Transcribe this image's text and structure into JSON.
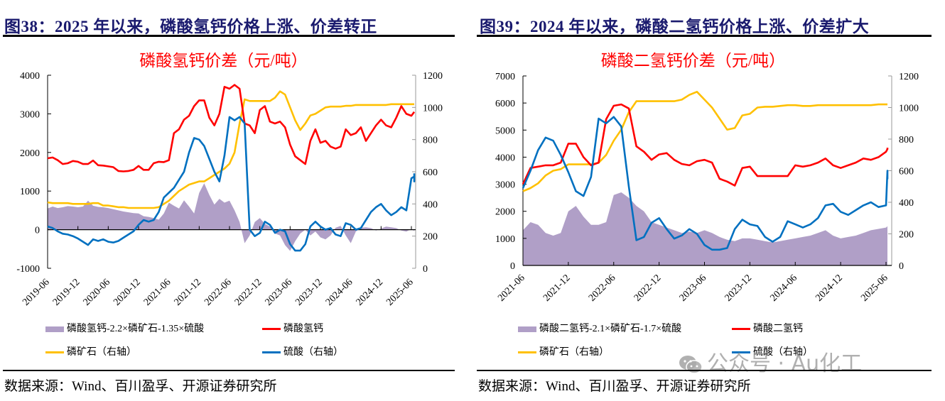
{
  "colors": {
    "spread_area": "#b09fc7",
    "product_line": "#ff0000",
    "phosphate_rock_line": "#ffc000",
    "sulfuric_acid_line": "#0070c0",
    "figure_title": "#1a1a6e",
    "chart_title": "#ff0000"
  },
  "left": {
    "figure_title": "图38：2025 年以来，磷酸氢钙价格上涨、价差转正",
    "source": "数据来源：Wind、百川盈孚、开源证券研究所",
    "legend": {
      "spread": "磷酸氢钙-2.2×磷矿石-1.35×硫酸",
      "product": "磷酸氢钙",
      "rock": "磷矿石（右轴）",
      "acid": "硫酸（右轴）"
    }
  },
  "right": {
    "figure_title": "图39：2024 年以来，磷酸二氢钙价格上涨、价差扩大",
    "source": "数据来源：Wind、百川盈孚、开源证券研究所",
    "legend": {
      "spread": "磷酸二氢钙-2.1×磷矿石-1.7×硫酸",
      "product": "磷酸二氢钙",
      "rock": "磷矿石（右轴）",
      "acid": "硫酸（右轴）"
    },
    "watermark": "公众号 · Au化工"
  },
  "chart_data": [
    {
      "type": "line",
      "title": "磷酸氢钙价差（元/吨）",
      "xlabel": "",
      "ylabel": "",
      "ylim": [
        -1000,
        4000
      ],
      "y_ticks": [
        -1000,
        0,
        1000,
        2000,
        3000,
        4000
      ],
      "y2lim": [
        0,
        1200
      ],
      "y2_ticks": [
        0,
        200,
        400,
        600,
        800,
        1000,
        1200
      ],
      "x_start": "2019-06",
      "x_step": "month",
      "x_tick_labels": [
        "2019-06",
        "2019-12",
        "2020-06",
        "2020-12",
        "2021-06",
        "2021-12",
        "2022-06",
        "2022-12",
        "2023-06",
        "2023-12",
        "2024-06",
        "2024-12",
        "2025-06"
      ],
      "grid": false,
      "legend_position": "bottom",
      "series": [
        {
          "name": "磷酸氢钙-2.2×磷矿石-1.35×硫酸",
          "kind": "area",
          "axis": "left",
          "values": [
            550,
            600,
            560,
            580,
            610,
            600,
            580,
            600,
            750,
            620,
            590,
            580,
            560,
            530,
            500,
            470,
            450,
            430,
            420,
            350,
            330,
            300,
            260,
            420,
            700,
            620,
            550,
            760,
            600,
            420,
            950,
            1200,
            900,
            650,
            800,
            700,
            750,
            500,
            200,
            -350,
            -150,
            200,
            300,
            150,
            80,
            -100,
            -150,
            -400,
            -550,
            -300,
            -100,
            0,
            -150,
            -50,
            -200,
            -250,
            -150,
            50,
            100,
            -150,
            -350,
            -50,
            50,
            60,
            40,
            -20,
            30,
            80,
            60,
            40,
            -20,
            -50,
            20,
            -30
          ]
        },
        {
          "name": "磷酸氢钙",
          "kind": "line",
          "axis": "left",
          "values": [
            1850,
            1870,
            1800,
            1700,
            1720,
            1780,
            1760,
            1700,
            1700,
            1790,
            1670,
            1660,
            1640,
            1620,
            1520,
            1510,
            1520,
            1550,
            1650,
            1550,
            1550,
            1720,
            1760,
            1750,
            1800,
            2500,
            2600,
            2850,
            2950,
            3200,
            3350,
            3350,
            2900,
            2700,
            3000,
            3700,
            3650,
            3750,
            3650,
            2750,
            2700,
            2500,
            3100,
            3200,
            2800,
            2750,
            2800,
            2650,
            2200,
            1900,
            1800,
            1700,
            2300,
            2600,
            2250,
            2300,
            2150,
            2100,
            2150,
            2600,
            2450,
            2500,
            2650,
            2300,
            2500,
            2700,
            2850,
            2700,
            2650,
            2900,
            3200,
            3000,
            2950,
            3050
          ]
        },
        {
          "name": "磷矿石（右轴）",
          "kind": "line",
          "axis": "right",
          "values": [
            410,
            405,
            405,
            405,
            405,
            400,
            400,
            400,
            400,
            405,
            405,
            390,
            390,
            385,
            380,
            380,
            375,
            375,
            375,
            375,
            375,
            375,
            380,
            400,
            420,
            450,
            480,
            500,
            520,
            530,
            540,
            540,
            560,
            580,
            600,
            620,
            650,
            720,
            900,
            1050,
            1040,
            1040,
            1040,
            1040,
            1040,
            1060,
            1100,
            1080,
            1000,
            920,
            860,
            900,
            950,
            960,
            980,
            1000,
            1005,
            1005,
            1005,
            1010,
            1010,
            1015,
            1015,
            1015,
            1015,
            1015,
            1015,
            1015,
            1020,
            1020,
            1020,
            1020,
            1020,
            1020
          ]
        },
        {
          "name": "硫酸（右轴）",
          "kind": "line",
          "axis": "right",
          "values": [
            260,
            250,
            230,
            215,
            210,
            200,
            185,
            165,
            145,
            180,
            170,
            180,
            165,
            160,
            170,
            190,
            210,
            230,
            270,
            300,
            290,
            300,
            350,
            440,
            470,
            500,
            550,
            600,
            720,
            810,
            800,
            760,
            680,
            600,
            540,
            700,
            940,
            920,
            940,
            900,
            240,
            200,
            220,
            290,
            270,
            220,
            240,
            230,
            150,
            110,
            110,
            150,
            260,
            290,
            260,
            240,
            250,
            210,
            200,
            280,
            270,
            240,
            250,
            300,
            350,
            380,
            400,
            360,
            330,
            350,
            380,
            360,
            560,
            570,
            540,
            590
          ]
        }
      ]
    },
    {
      "type": "line",
      "title": "磷酸二氢钙价差（元/吨）",
      "xlabel": "",
      "ylabel": "",
      "ylim": [
        0,
        7000
      ],
      "y_ticks": [
        0,
        1000,
        2000,
        3000,
        4000,
        5000,
        6000,
        7000
      ],
      "y2lim": [
        0,
        1200
      ],
      "y2_ticks": [
        0,
        200,
        400,
        600,
        800,
        1000,
        1200
      ],
      "x_start": "2021-06",
      "x_step": "month",
      "x_tick_labels": [
        "2021-06",
        "2021-12",
        "2022-06",
        "2022-12",
        "2023-06",
        "2023-12",
        "2024-06",
        "2024-12",
        "2025-06"
      ],
      "grid": false,
      "legend_position": "bottom",
      "series": [
        {
          "name": "磷酸二氢钙-2.1×磷矿石-1.7×硫酸",
          "kind": "area",
          "axis": "left",
          "values": [
            1300,
            1600,
            1500,
            1200,
            1100,
            1200,
            2000,
            2200,
            1800,
            1500,
            1500,
            1600,
            2600,
            2700,
            2500,
            2200,
            2000,
            1600,
            1500,
            1400,
            1300,
            1200,
            1250,
            1200,
            1300,
            1200,
            1050,
            950,
            900,
            1000,
            1000,
            950,
            900,
            850,
            900,
            950,
            1000,
            1050,
            1100,
            1200,
            1300,
            1100,
            1000,
            1050,
            1100,
            1200,
            1300,
            1350,
            1400,
            1450,
            1500,
            1450
          ]
        },
        {
          "name": "磷酸二氢钙",
          "kind": "line",
          "axis": "left",
          "values": [
            3000,
            3600,
            3650,
            3700,
            3700,
            3800,
            4500,
            4500,
            4000,
            3700,
            3800,
            5400,
            5900,
            5950,
            5800,
            4400,
            4200,
            3900,
            4100,
            4150,
            3900,
            3750,
            3700,
            3850,
            3900,
            3800,
            3200,
            3100,
            2950,
            3600,
            3650,
            3300,
            3300,
            3300,
            3300,
            3300,
            3700,
            3650,
            3700,
            3800,
            3950,
            3700,
            3600,
            3700,
            3800,
            3950,
            3900,
            4000,
            4200,
            4300,
            4300,
            4350
          ]
        },
        {
          "name": "磷矿石（右轴）",
          "kind": "line",
          "axis": "right",
          "values": [
            470,
            490,
            520,
            570,
            600,
            610,
            640,
            640,
            640,
            640,
            650,
            700,
            790,
            860,
            970,
            1040,
            1040,
            1040,
            1040,
            1040,
            1040,
            1050,
            1080,
            1100,
            1050,
            1000,
            930,
            860,
            870,
            950,
            960,
            1000,
            1005,
            1005,
            1010,
            1015,
            1015,
            1010,
            1010,
            1015,
            1015,
            1015,
            1015,
            1015,
            1015,
            1015,
            1015,
            1020,
            1020,
            1020,
            1020,
            1020
          ]
        },
        {
          "name": "硫酸（右轴）",
          "kind": "line",
          "axis": "right",
          "values": [
            490,
            600,
            730,
            810,
            790,
            700,
            590,
            470,
            440,
            560,
            930,
            900,
            940,
            880,
            500,
            160,
            180,
            270,
            300,
            230,
            170,
            190,
            230,
            200,
            130,
            100,
            100,
            110,
            230,
            290,
            260,
            250,
            180,
            150,
            180,
            280,
            260,
            240,
            260,
            300,
            380,
            390,
            340,
            320,
            350,
            380,
            400,
            370,
            380,
            600,
            550,
            590
          ]
        }
      ]
    }
  ]
}
